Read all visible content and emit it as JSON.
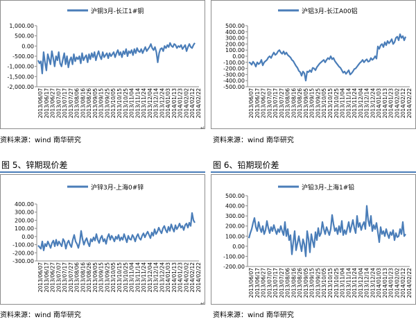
{
  "captions": {
    "fig5": "图 5、锌期现价差",
    "fig6": "图 6、铅期现价差"
  },
  "source_text": "资料来源：wind  南华研究",
  "x_tick_labels": [
    "2013/06/07",
    "2013/06/17",
    "2013/06/27",
    "2013/07/07",
    "2013/07/17",
    "2013/07/27",
    "2013/08/06",
    "2013/08/16",
    "2013/08/26",
    "2013/09/05",
    "2013/09/15",
    "2013/09/25",
    "2013/10/05",
    "2013/10/15",
    "2013/10/25",
    "2013/11/04",
    "2013/11/14",
    "2013/11/24",
    "2013/12/04",
    "2013/12/14",
    "2013/12/24",
    "2014/01/03",
    "2014/01/13",
    "2014/01/23",
    "2014/02/02",
    "2014/02/12",
    "2014/02/22"
  ],
  "colors": {
    "series": "#4a7db8",
    "caption_line": "#4a7db8"
  },
  "chart_data": [
    {
      "type": "line",
      "legend": "沪铜3月-长江1#铜",
      "yticks": [
        "1,000.00",
        "500.00",
        "0.00",
        "-500.00",
        "-1,000.00",
        "-1,500.00",
        "-2,000.00"
      ],
      "ylim": [
        -2000,
        1000
      ],
      "series": [
        {
          "name": "沪铜3月-长江1#铜",
          "values": [
            -700,
            -850,
            -750,
            -1350,
            -300,
            -800,
            -1200,
            -400,
            -650,
            -900,
            -250,
            -600,
            -1000,
            -500,
            -700,
            -300,
            -850,
            -1000,
            -650,
            -350,
            -900,
            -500,
            -1050,
            -700,
            -550,
            -900,
            -400,
            -750,
            -550,
            -650,
            -500,
            -850,
            -350,
            -700,
            -550,
            -450,
            -800,
            -400,
            -650,
            -350,
            -550,
            -300,
            -700,
            -450,
            -250,
            -500,
            -650,
            -300,
            -550,
            -450,
            -350,
            -600,
            -350,
            -500,
            -400,
            -300,
            -550,
            -350,
            -200,
            -450,
            -300,
            -550,
            -250,
            -400,
            -150,
            -500,
            -250,
            -350,
            -200,
            -450,
            -150,
            -350,
            -100,
            -250,
            -300,
            -150,
            -350,
            -200,
            -50,
            -250,
            -150,
            -50,
            100,
            -100,
            -200,
            -50,
            -300,
            -800,
            -350,
            -150,
            -100,
            -250,
            0,
            -100,
            50,
            -50,
            150,
            0,
            -50,
            100,
            50,
            -100,
            0,
            -50,
            50,
            -150,
            -50,
            50,
            -250,
            -50,
            100,
            -50,
            -100,
            50,
            150
          ]
        }
      ]
    },
    {
      "type": "line",
      "legend": "沪铝3月-长江A00铝",
      "yticks": [
        "500.00",
        "400.00",
        "300.00",
        "200.00",
        "100.00",
        "0.00",
        "-100.00",
        "-200.00",
        "-300.00",
        "-400.00",
        "-500.00"
      ],
      "ylim": [
        -500,
        500
      ],
      "series": [
        {
          "name": "沪铝3月-长江A00铝",
          "values": [
            -100,
            -110,
            -140,
            -90,
            -120,
            -170,
            -100,
            -130,
            -110,
            -60,
            -150,
            -100,
            -80,
            -60,
            -20,
            0,
            -30,
            20,
            60,
            20,
            40,
            80,
            100,
            60,
            40,
            80,
            30,
            60,
            20,
            0,
            -20,
            -60,
            -80,
            -120,
            -160,
            -190,
            -240,
            -260,
            -320,
            -250,
            -280,
            -400,
            -250,
            -260,
            -230,
            -260,
            -190,
            -200,
            -230,
            -180,
            -150,
            -120,
            -100,
            -80,
            -60,
            -100,
            -60,
            -30,
            -50,
            0,
            -50,
            -30,
            -80,
            -110,
            -140,
            -170,
            -190,
            -230,
            -270,
            -250,
            -290,
            -260,
            -230,
            -300,
            -280,
            -250,
            -210,
            -200,
            -170,
            -140,
            -110,
            -90,
            -60,
            -100,
            -70,
            -50,
            -90,
            -80,
            -30,
            -60,
            -40,
            0,
            -40,
            160,
            120,
            180,
            200,
            150,
            230,
            180,
            250,
            210,
            240,
            280,
            200,
            230,
            300,
            320,
            260,
            360,
            300,
            330,
            260,
            320
          ]
        }
      ]
    },
    {
      "type": "line",
      "legend": "沪锌3月-上海0#锌",
      "yticks": [
        "400.00",
        "300.00",
        "200.00",
        "100.00",
        "0.00",
        "-100.00",
        "-200.00",
        "-300.00"
      ],
      "ylim": [
        -300,
        400
      ],
      "series": [
        {
          "name": "沪锌3月-上海0#锌",
          "values": [
            -110,
            -130,
            -150,
            -60,
            -170,
            -90,
            -120,
            -60,
            -100,
            -140,
            -80,
            -50,
            -120,
            -40,
            -110,
            -60,
            -90,
            -120,
            -30,
            -60,
            -150,
            -80,
            -50,
            -100,
            -130,
            -40,
            20,
            -60,
            -90,
            -140,
            -70,
            70,
            -30,
            -100,
            -50,
            -20,
            -80,
            -120,
            -30,
            -60,
            -10,
            -50,
            30,
            -40,
            -80,
            -20,
            10,
            -60,
            -30,
            -90,
            -10,
            30,
            -40,
            10,
            -20,
            -60,
            0,
            -30,
            20,
            -50,
            -10,
            -40,
            30,
            -20,
            -70,
            10,
            -30,
            -40,
            20,
            -10,
            -60,
            0,
            30,
            -20,
            -40,
            10,
            40,
            -10,
            30,
            60,
            20,
            -20,
            50,
            10,
            90,
            30,
            60,
            110,
            70,
            40,
            100,
            130,
            80,
            50,
            120,
            70,
            150,
            100,
            60,
            140,
            90,
            120,
            160,
            110,
            130,
            80,
            140,
            160,
            110,
            170,
            130,
            290,
            200,
            170
          ]
        }
      ]
    },
    {
      "type": "line",
      "legend": "沪铅3月-上海1#铅",
      "yticks": [
        "500.00",
        "400.00",
        "300.00",
        "200.00",
        "100.00",
        "0.00",
        "-100.00",
        "-200.00"
      ],
      "ylim": [
        -200,
        500
      ],
      "series": [
        {
          "name": "沪铅3月-上海1#铅",
          "values": [
            80,
            130,
            170,
            230,
            280,
            190,
            150,
            240,
            180,
            140,
            200,
            120,
            160,
            250,
            180,
            130,
            190,
            150,
            210,
            160,
            120,
            170,
            140,
            200,
            150,
            110,
            240,
            100,
            170,
            60,
            110,
            -80,
            40,
            150,
            -40,
            30,
            100,
            20,
            -50,
            70,
            20,
            -100,
            150,
            70,
            -60,
            120,
            50,
            -10,
            140,
            60,
            180,
            100,
            130,
            240,
            170,
            120,
            190,
            150,
            110,
            170,
            310,
            220,
            150,
            180,
            120,
            200,
            140,
            250,
            110,
            160,
            120,
            180,
            240,
            140,
            200,
            260,
            180,
            130,
            300,
            190,
            230,
            160,
            210,
            240,
            170,
            400,
            260,
            200,
            300,
            150,
            210,
            170,
            230,
            140,
            40,
            190,
            120,
            150,
            100,
            170,
            120,
            80,
            140,
            110,
            160,
            60,
            130,
            90,
            100,
            170,
            120,
            240,
            100,
            120
          ]
        }
      ]
    }
  ]
}
